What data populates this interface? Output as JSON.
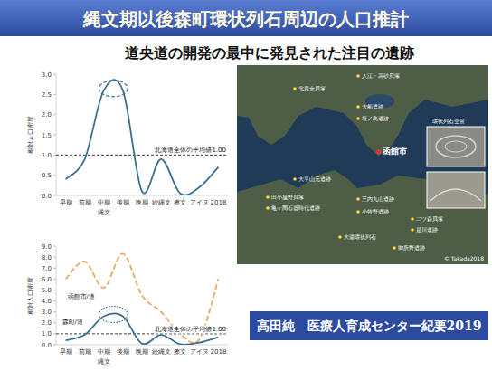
{
  "header": {
    "title": "縄文期以後森町環状列石周辺の人口推計",
    "subtitle": "道央道の開発の最中に発見された注目の遺跡"
  },
  "chart_data": [
    {
      "type": "line",
      "ylabel": "相対人口密度",
      "xlabel": "縄文",
      "categories": [
        "早期",
        "前期",
        "中期",
        "後期",
        "晩期",
        "続縄文",
        "擦文",
        "アイヌ",
        "2018"
      ],
      "values": [
        0.4,
        0.9,
        2.6,
        2.6,
        0.1,
        0.9,
        0.05,
        0.2,
        0.7
      ],
      "color": "#3d6f8f",
      "line_style": "smooth",
      "ylim": [
        0,
        3
      ],
      "yticks": [
        {
          "value": 0,
          "label": "0.0"
        },
        {
          "value": 0.5,
          "label": "0.5"
        },
        {
          "value": 1,
          "label": "1.0"
        },
        {
          "value": 1.5,
          "label": "1.5"
        },
        {
          "value": 2,
          "label": "2.0"
        },
        {
          "value": 2.5,
          "label": "2.5"
        },
        {
          "value": 3,
          "label": "3.0"
        }
      ],
      "annotations": [
        {
          "text": "北海道全体の平均値1.00",
          "y": 1
        }
      ]
    },
    {
      "type": "line",
      "ylabel": "相対人口密度",
      "xlabel": "縄文",
      "categories": [
        "早期",
        "前期",
        "中期",
        "後期",
        "晩期",
        "続縄文",
        "擦文",
        "アイヌ",
        "2018"
      ],
      "series": [
        {
          "name": "函館市/道",
          "color": "#e8a868",
          "line_style": "dashed",
          "values": [
            6.0,
            7.6,
            5.2,
            8.3,
            4.5,
            3.0,
            1.0,
            0.5,
            6.0
          ]
        },
        {
          "name": "森町/道",
          "color": "#3d6f8f",
          "line_style": "smooth",
          "values": [
            0.4,
            0.9,
            2.6,
            2.6,
            0.1,
            0.9,
            0.05,
            0.2,
            0.7
          ]
        }
      ],
      "ylim": [
        0,
        9
      ],
      "yticks": [
        {
          "value": 0,
          "label": "0.0"
        },
        {
          "value": 1,
          "label": "1.0"
        },
        {
          "value": 2,
          "label": "2.0"
        },
        {
          "value": 3,
          "label": "3.0"
        },
        {
          "value": 4,
          "label": "4.0"
        },
        {
          "value": 5,
          "label": "5.0"
        },
        {
          "value": 6,
          "label": "6.0"
        },
        {
          "value": 7,
          "label": "7.0"
        },
        {
          "value": 8,
          "label": "8.0"
        },
        {
          "value": 9,
          "label": "9.0"
        }
      ],
      "annotations": [
        {
          "text": "北海道全体の平均値1.00",
          "y": 1
        }
      ]
    }
  ],
  "map": {
    "labels": [
      "入江・高砂貝塚",
      "北黄金貝塚",
      "大船遺跡",
      "垣ノ島遺跡",
      "函館市",
      "大平山元遺跡",
      "田小屋野貝塚",
      "亀ヶ岡石器時代遺跡",
      "三内丸山遺跡",
      "小牧野遺跡",
      "二ツ森貝塚",
      "是川遺跡",
      "大湯環状列石",
      "御所野遺跡",
      "環状列石全景"
    ],
    "credit": "© Takada2018"
  },
  "citation": "高田純　医療人育成センター紀要2019"
}
